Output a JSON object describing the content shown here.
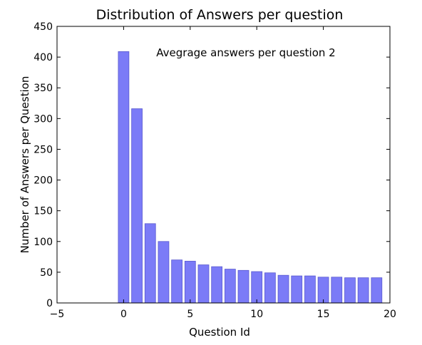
{
  "chart_data": {
    "type": "bar",
    "title": "Distribution of Answers per question",
    "xlabel": "Question Id",
    "ylabel": "Number of Answers per Question",
    "annotation": "Avegrage answers per question 2",
    "xlim": [
      -5,
      20
    ],
    "ylim": [
      0,
      450
    ],
    "xticks": [
      -5,
      0,
      5,
      10,
      15,
      20
    ],
    "yticks": [
      0,
      50,
      100,
      150,
      200,
      250,
      300,
      350,
      400,
      450
    ],
    "x": [
      0,
      1,
      2,
      3,
      4,
      5,
      6,
      7,
      8,
      9,
      10,
      11,
      12,
      13,
      14,
      15,
      16,
      17,
      18,
      19
    ],
    "values": [
      409,
      316,
      129,
      100,
      70,
      68,
      62,
      59,
      55,
      53,
      51,
      49,
      45,
      44,
      44,
      42,
      42,
      41,
      41,
      41
    ],
    "bar_color": "#7b7bf7",
    "bar_edge_color": "#5a5ad0",
    "grid": false,
    "legend": "none"
  }
}
